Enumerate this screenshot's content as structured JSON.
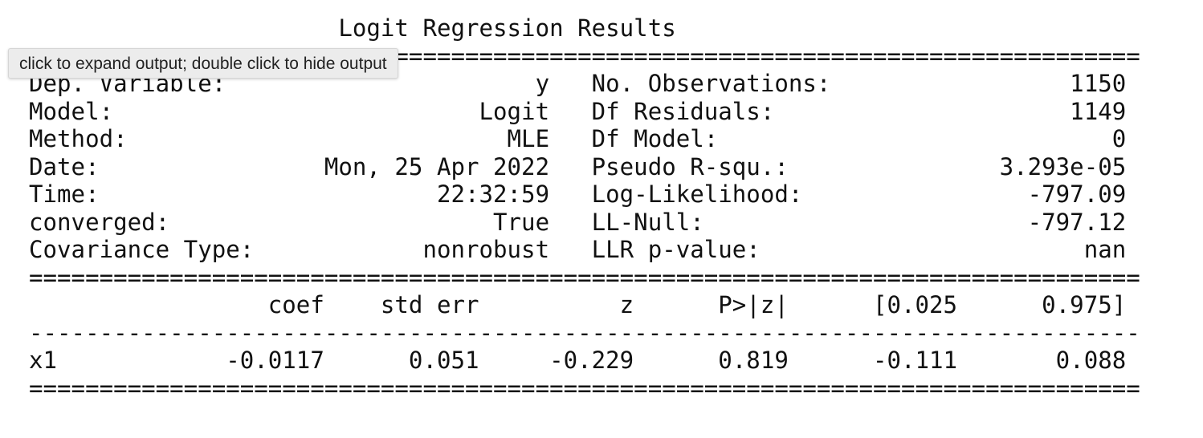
{
  "output": {
    "tooltip": "click to expand output; double click to hide output",
    "summary_lines": [
      "                      Logit Regression Results                      ",
      "===============================================================================",
      "Dep. Variable:                      y   No. Observations:                 1150",
      "Model:                          Logit   Df Residuals:                     1149",
      "Method:                           MLE   Df Model:                            0",
      "Date:                Mon, 25 Apr 2022   Pseudo R-squ.:               3.293e-05",
      "Time:                        22:32:59   Log-Likelihood:                -797.09",
      "converged:                       True   LL-Null:                       -797.12",
      "Covariance Type:            nonrobust   LLR p-value:                       nan",
      "===============================================================================",
      "                 coef    std err          z      P>|z|      [0.025      0.975]",
      "-------------------------------------------------------------------------------",
      "x1            -0.0117      0.051     -0.229      0.819      -0.111       0.088",
      "==============================================================================="
    ]
  }
}
